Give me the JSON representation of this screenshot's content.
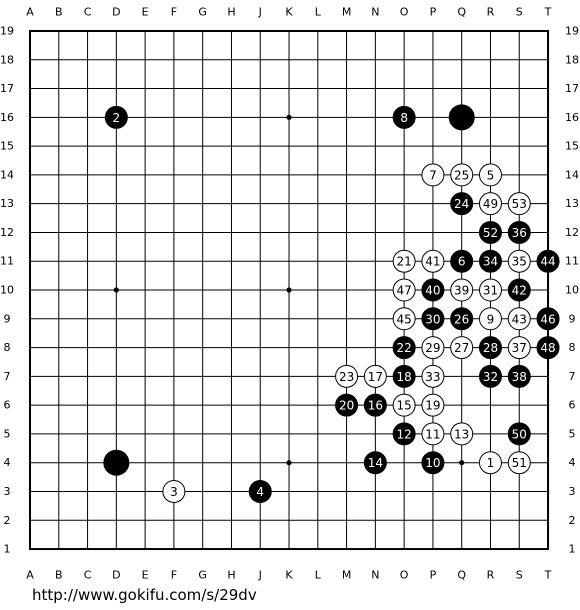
{
  "board": {
    "columns": [
      "A",
      "B",
      "C",
      "D",
      "E",
      "F",
      "G",
      "H",
      "J",
      "K",
      "L",
      "M",
      "N",
      "O",
      "P",
      "Q",
      "R",
      "S",
      "T"
    ],
    "rows": [
      19,
      18,
      17,
      16,
      15,
      14,
      13,
      12,
      11,
      10,
      9,
      8,
      7,
      6,
      5,
      4,
      3,
      2,
      1
    ],
    "stones": [
      {
        "col": "D",
        "row": 16,
        "color": "black",
        "label": 2
      },
      {
        "col": "O",
        "row": 16,
        "color": "black",
        "label": 8
      },
      {
        "col": "Q",
        "row": 16,
        "color": "black"
      },
      {
        "col": "P",
        "row": 14,
        "color": "white",
        "label": 7
      },
      {
        "col": "Q",
        "row": 14,
        "color": "white",
        "label": 25
      },
      {
        "col": "R",
        "row": 14,
        "color": "white",
        "label": 5
      },
      {
        "col": "Q",
        "row": 13,
        "color": "black",
        "label": 24
      },
      {
        "col": "R",
        "row": 13,
        "color": "white",
        "label": 49
      },
      {
        "col": "S",
        "row": 13,
        "color": "white",
        "label": 53
      },
      {
        "col": "R",
        "row": 12,
        "color": "black",
        "label": 52
      },
      {
        "col": "S",
        "row": 12,
        "color": "black",
        "label": 36
      },
      {
        "col": "O",
        "row": 11,
        "color": "white",
        "label": 21
      },
      {
        "col": "P",
        "row": 11,
        "color": "white",
        "label": 41
      },
      {
        "col": "Q",
        "row": 11,
        "color": "black",
        "label": 6
      },
      {
        "col": "R",
        "row": 11,
        "color": "black",
        "label": 34
      },
      {
        "col": "S",
        "row": 11,
        "color": "white",
        "label": 35
      },
      {
        "col": "T",
        "row": 11,
        "color": "black",
        "label": 44
      },
      {
        "col": "O",
        "row": 10,
        "color": "white",
        "label": 47
      },
      {
        "col": "P",
        "row": 10,
        "color": "black",
        "label": 40
      },
      {
        "col": "Q",
        "row": 10,
        "color": "white",
        "label": 39
      },
      {
        "col": "R",
        "row": 10,
        "color": "white",
        "label": 31
      },
      {
        "col": "S",
        "row": 10,
        "color": "black",
        "label": 42
      },
      {
        "col": "O",
        "row": 9,
        "color": "white",
        "label": 45
      },
      {
        "col": "P",
        "row": 9,
        "color": "black",
        "label": 30
      },
      {
        "col": "Q",
        "row": 9,
        "color": "black",
        "label": 26
      },
      {
        "col": "R",
        "row": 9,
        "color": "white",
        "label": 9
      },
      {
        "col": "S",
        "row": 9,
        "color": "white",
        "label": 43
      },
      {
        "col": "T",
        "row": 9,
        "color": "black",
        "label": 46
      },
      {
        "col": "O",
        "row": 8,
        "color": "black",
        "label": 22
      },
      {
        "col": "P",
        "row": 8,
        "color": "white",
        "label": 29
      },
      {
        "col": "Q",
        "row": 8,
        "color": "white",
        "label": 27
      },
      {
        "col": "R",
        "row": 8,
        "color": "black",
        "label": 28
      },
      {
        "col": "S",
        "row": 8,
        "color": "white",
        "label": 37
      },
      {
        "col": "T",
        "row": 8,
        "color": "black",
        "label": 48
      },
      {
        "col": "M",
        "row": 7,
        "color": "white",
        "label": 23
      },
      {
        "col": "N",
        "row": 7,
        "color": "white",
        "label": 17
      },
      {
        "col": "O",
        "row": 7,
        "color": "black",
        "label": 18
      },
      {
        "col": "P",
        "row": 7,
        "color": "white",
        "label": 33
      },
      {
        "col": "R",
        "row": 7,
        "color": "black",
        "label": 32
      },
      {
        "col": "S",
        "row": 7,
        "color": "black",
        "label": 38
      },
      {
        "col": "M",
        "row": 6,
        "color": "black",
        "label": 20
      },
      {
        "col": "N",
        "row": 6,
        "color": "black",
        "label": 16
      },
      {
        "col": "O",
        "row": 6,
        "color": "white",
        "label": 15
      },
      {
        "col": "P",
        "row": 6,
        "color": "white",
        "label": 19
      },
      {
        "col": "O",
        "row": 5,
        "color": "black",
        "label": 12
      },
      {
        "col": "P",
        "row": 5,
        "color": "white",
        "label": 11
      },
      {
        "col": "Q",
        "row": 5,
        "color": "white",
        "label": 13
      },
      {
        "col": "S",
        "row": 5,
        "color": "black",
        "label": 50
      },
      {
        "col": "D",
        "row": 4,
        "color": "black"
      },
      {
        "col": "N",
        "row": 4,
        "color": "black",
        "label": 14
      },
      {
        "col": "P",
        "row": 4,
        "color": "black",
        "label": 10
      },
      {
        "col": "R",
        "row": 4,
        "color": "white",
        "label": 1
      },
      {
        "col": "S",
        "row": 4,
        "color": "white",
        "label": 51
      },
      {
        "col": "F",
        "row": 3,
        "color": "white",
        "label": 3
      },
      {
        "col": "J",
        "row": 3,
        "color": "black",
        "label": 4
      }
    ]
  },
  "footer": {
    "url": "http://www.gokifu.com/s/29dv"
  }
}
